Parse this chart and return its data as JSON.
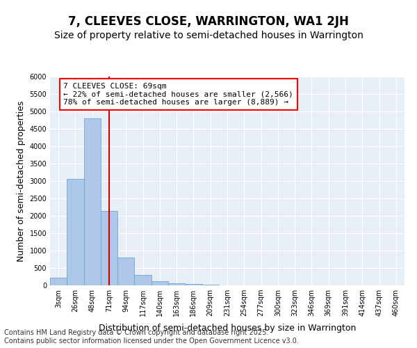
{
  "title": "7, CLEEVES CLOSE, WARRINGTON, WA1 2JH",
  "subtitle": "Size of property relative to semi-detached houses in Warrington",
  "xlabel": "Distribution of semi-detached houses by size in Warrington",
  "ylabel": "Number of semi-detached properties",
  "bar_color": "#aec6e8",
  "bar_edge_color": "#5a9fd4",
  "bg_color": "#e8eef5",
  "grid_color": "#ffffff",
  "bin_labels": [
    "3sqm",
    "26sqm",
    "48sqm",
    "71sqm",
    "94sqm",
    "117sqm",
    "140sqm",
    "163sqm",
    "186sqm",
    "209sqm",
    "231sqm",
    "254sqm",
    "277sqm",
    "300sqm",
    "323sqm",
    "346sqm",
    "369sqm",
    "391sqm",
    "414sqm",
    "437sqm",
    "460sqm"
  ],
  "bar_values": [
    230,
    3060,
    4800,
    2140,
    800,
    300,
    115,
    60,
    50,
    20,
    5,
    2,
    1,
    0,
    0,
    0,
    0,
    0,
    0,
    0,
    0
  ],
  "property_bin_index": 3,
  "annotation_text_line1": "7 CLEEVES CLOSE: 69sqm",
  "annotation_text_line2": "← 22% of semi-detached houses are smaller (2,566)",
  "annotation_text_line3": "78% of semi-detached houses are larger (8,889) →",
  "vline_color": "#cc0000",
  "ylim": [
    0,
    6000
  ],
  "yticks": [
    0,
    500,
    1000,
    1500,
    2000,
    2500,
    3000,
    3500,
    4000,
    4500,
    5000,
    5500,
    6000
  ],
  "footer_line1": "Contains HM Land Registry data © Crown copyright and database right 2025.",
  "footer_line2": "Contains public sector information licensed under the Open Government Licence v3.0.",
  "title_fontsize": 12,
  "subtitle_fontsize": 10,
  "annotation_fontsize": 8,
  "tick_fontsize": 7,
  "ylabel_fontsize": 9,
  "xlabel_fontsize": 9,
  "footer_fontsize": 7
}
